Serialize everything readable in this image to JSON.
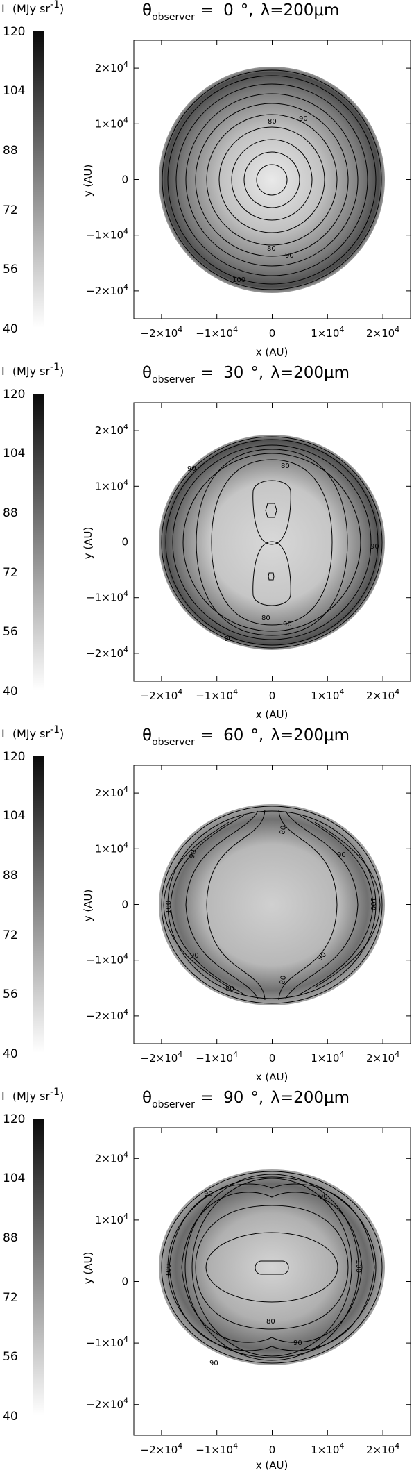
{
  "colorbar": {
    "title_prefix": "I",
    "unit": "(MJy sr",
    "unit_exp": "-1",
    "unit_close": ")",
    "ticks": [
      "120",
      "104",
      "88",
      "72",
      "56",
      "40"
    ]
  },
  "axes": {
    "xlabel": "x (AU)",
    "ylabel": "y (AU)",
    "tick_mantissas": [
      "−2×10",
      "−1×10",
      "0",
      "1×10",
      "2×10"
    ],
    "tick_exponent": "4"
  },
  "title": {
    "theta": "θ",
    "sub": "observer",
    "eq": "=",
    "degree": "°,",
    "wavelength": "λ=200μm"
  },
  "panels": [
    {
      "angle": "0"
    },
    {
      "angle": "30"
    },
    {
      "angle": "60"
    },
    {
      "angle": "90"
    }
  ],
  "chart_data": [
    {
      "type": "heatmap",
      "title": "θobserver = 0 °, λ=200μm",
      "xlabel": "x (AU)",
      "ylabel": "y (AU)",
      "xlim": [
        -25000,
        25000
      ],
      "ylim": [
        -25000,
        25000
      ],
      "colorbar": {
        "label": "I (MJy sr-1)",
        "range": [
          40,
          120
        ],
        "ticks": [
          120,
          104,
          88,
          72,
          56,
          40
        ]
      },
      "contour_labels": [
        "80",
        "90",
        "80",
        "90",
        "100"
      ],
      "description_values": {
        "center_intensity": 64,
        "rim_intensity": 115
      }
    },
    {
      "type": "heatmap",
      "title": "θobserver = 30 °, λ=200μm",
      "xlabel": "x (AU)",
      "ylabel": "y (AU)",
      "xlim": [
        -25000,
        25000
      ],
      "ylim": [
        -25000,
        25000
      ],
      "colorbar": {
        "label": "I (MJy sr-1)",
        "range": [
          40,
          120
        ],
        "ticks": [
          120,
          104,
          88,
          72,
          56,
          40
        ]
      },
      "contour_labels": [
        "80",
        "90",
        "80",
        "90",
        "90",
        "90"
      ]
    },
    {
      "type": "heatmap",
      "title": "θobserver = 60 °, λ=200μm",
      "xlabel": "x (AU)",
      "ylabel": "y (AU)",
      "xlim": [
        -25000,
        25000
      ],
      "ylim": [
        -25000,
        25000
      ],
      "colorbar": {
        "label": "I (MJy sr-1)",
        "range": [
          40,
          120
        ],
        "ticks": [
          120,
          104,
          88,
          72,
          56,
          40
        ]
      },
      "contour_labels": [
        "80",
        "90",
        "90",
        "100",
        "100",
        "90",
        "80",
        "90",
        "80"
      ]
    },
    {
      "type": "heatmap",
      "title": "θobserver = 90 °, λ=200μm",
      "xlabel": "x (AU)",
      "ylabel": "y (AU)",
      "xlim": [
        -25000,
        25000
      ],
      "ylim": [
        -25000,
        25000
      ],
      "colorbar": {
        "label": "I (MJy sr-1)",
        "range": [
          40,
          120
        ],
        "ticks": [
          120,
          104,
          88,
          72,
          56,
          40
        ]
      },
      "contour_labels": [
        "90",
        "90",
        "100",
        "100",
        "80",
        "90",
        "90"
      ]
    }
  ]
}
